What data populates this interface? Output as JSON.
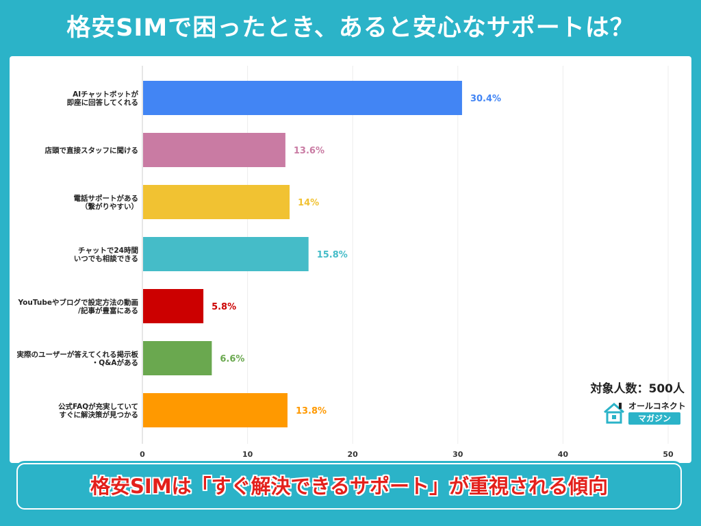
{
  "header": {
    "title": "格安SIMで困ったとき、あると安心なサポートは？"
  },
  "sample_size": "対象人数：500人",
  "logo": {
    "name_top": "オールコネクト",
    "name_bottom": "マガジン"
  },
  "banner": {
    "text": "格安SIMは「すぐ解決できるサポート」が重視される傾向"
  },
  "chart_data": {
    "type": "bar",
    "orientation": "horizontal",
    "title": "",
    "xlabel": "",
    "ylabel": "",
    "xlim": [
      0,
      50
    ],
    "ticks": [
      0,
      10,
      20,
      30,
      40,
      50
    ],
    "grid": true,
    "categories": [
      [
        "AIチャットボットが",
        "即座に回答してくれる"
      ],
      [
        "店頭で直接スタッフに聞ける"
      ],
      [
        "電話サポートがある",
        "（繋がりやすい）"
      ],
      [
        "チャットで24時間",
        "いつでも相談できる"
      ],
      [
        "YouTubeやブログで設定方法の動画",
        "/記事が豊富にある"
      ],
      [
        "実際のユーザーが答えてくれる掲示板",
        "・Q&Aがある"
      ],
      [
        "公式FAQが充実していて",
        "すぐに解決策が見つかる"
      ]
    ],
    "values": [
      30.4,
      13.6,
      14,
      15.8,
      5.8,
      6.6,
      13.8
    ],
    "value_labels": [
      "30.4%",
      "13.6%",
      "14%",
      "15.8%",
      "5.8%",
      "6.6%",
      "13.8%"
    ],
    "colors": [
      "#4285f4",
      "#c97ba3",
      "#f1c232",
      "#45bcc8",
      "#cc0000",
      "#6aa84f",
      "#ff9900"
    ]
  }
}
